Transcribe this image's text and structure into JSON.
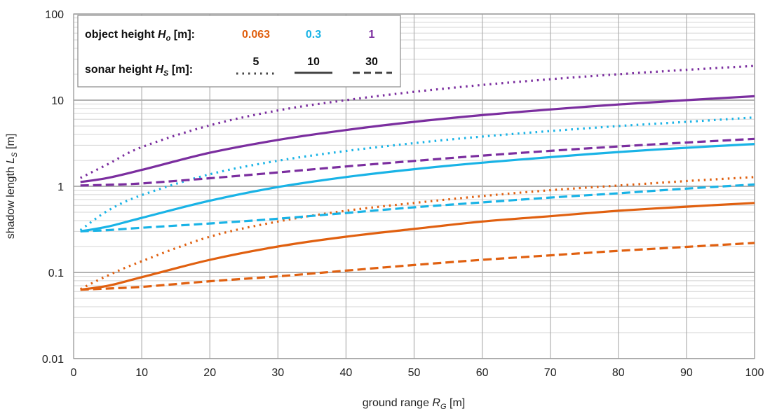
{
  "chart_data": {
    "type": "line",
    "xlabel": "ground range R_G [m]",
    "ylabel": "shadow length L_S [m]",
    "xlim": [
      0,
      100
    ],
    "ylim": [
      0.01,
      100
    ],
    "y_scale": "log",
    "grid": true,
    "x_ticks": [
      "0",
      "10",
      "20",
      "30",
      "40",
      "50",
      "60",
      "70",
      "80",
      "90",
      "100"
    ],
    "y_ticks": [
      "0.01",
      "0.1",
      "1",
      "10",
      "100"
    ],
    "legend": {
      "placement": "top-left",
      "object_label": "object height",
      "object_var": "H",
      "object_sub": "o",
      "object_unit": " [m]:",
      "object_values": [
        "0.063",
        "0.3",
        "1"
      ],
      "sonar_label": "sonar height",
      "sonar_var": "H",
      "sonar_sub": "S",
      "sonar_unit": " [m]:",
      "sonar_values": [
        "5",
        "10",
        "30"
      ]
    },
    "colors": {
      "0.063": "#e06010",
      "0.3": "#19b3e6",
      "1": "#7b2e9f"
    },
    "series": [
      {
        "object_height": 0.063,
        "sonar_height": 5,
        "style": "dotted",
        "x": [
          1,
          5,
          10,
          20,
          30,
          40,
          50,
          60,
          70,
          80,
          90,
          100
        ],
        "y": [
          0.064,
          0.092,
          0.135,
          0.26,
          0.39,
          0.52,
          0.64,
          0.77,
          0.9,
          1.02,
          1.15,
          1.28
        ]
      },
      {
        "object_height": 0.063,
        "sonar_height": 10,
        "style": "solid",
        "x": [
          1,
          5,
          10,
          20,
          30,
          40,
          50,
          60,
          70,
          80,
          90,
          100
        ],
        "y": [
          0.063,
          0.07,
          0.088,
          0.14,
          0.2,
          0.26,
          0.32,
          0.39,
          0.45,
          0.52,
          0.58,
          0.64
        ]
      },
      {
        "object_height": 0.063,
        "sonar_height": 30,
        "style": "dashed",
        "x": [
          1,
          5,
          10,
          20,
          30,
          40,
          50,
          60,
          70,
          80,
          90,
          100
        ],
        "y": [
          0.063,
          0.065,
          0.068,
          0.079,
          0.09,
          0.105,
          0.122,
          0.14,
          0.158,
          0.178,
          0.198,
          0.22
        ]
      },
      {
        "object_height": 0.3,
        "sonar_height": 5,
        "style": "dotted",
        "x": [
          1,
          5,
          10,
          20,
          30,
          40,
          50,
          60,
          70,
          80,
          90,
          100
        ],
        "y": [
          0.31,
          0.52,
          0.79,
          1.38,
          1.98,
          2.57,
          3.17,
          3.78,
          4.38,
          5.0,
          5.6,
          6.3
        ]
      },
      {
        "object_height": 0.3,
        "sonar_height": 10,
        "style": "solid",
        "x": [
          1,
          5,
          10,
          20,
          30,
          40,
          50,
          60,
          70,
          80,
          90,
          100
        ],
        "y": [
          0.3,
          0.34,
          0.43,
          0.68,
          0.98,
          1.28,
          1.58,
          1.88,
          2.18,
          2.5,
          2.8,
          3.1
        ]
      },
      {
        "object_height": 0.3,
        "sonar_height": 30,
        "style": "dashed",
        "x": [
          1,
          5,
          10,
          20,
          30,
          40,
          50,
          60,
          70,
          80,
          90,
          100
        ],
        "y": [
          0.3,
          0.31,
          0.33,
          0.37,
          0.42,
          0.49,
          0.57,
          0.65,
          0.74,
          0.83,
          0.94,
          1.05
        ]
      },
      {
        "object_height": 1,
        "sonar_height": 5,
        "style": "dotted",
        "x": [
          1,
          5,
          10,
          20,
          30,
          40,
          50,
          60,
          70,
          80,
          90,
          100
        ],
        "y": [
          1.25,
          1.8,
          2.85,
          5.1,
          7.6,
          10.0,
          12.5,
          15.0,
          17.5,
          20.0,
          22.5,
          25.0
        ]
      },
      {
        "object_height": 1,
        "sonar_height": 10,
        "style": "solid",
        "x": [
          1,
          5,
          10,
          20,
          30,
          40,
          50,
          60,
          70,
          80,
          90,
          100
        ],
        "y": [
          1.12,
          1.25,
          1.55,
          2.45,
          3.45,
          4.5,
          5.6,
          6.7,
          7.8,
          8.9,
          10.0,
          11.1
        ]
      },
      {
        "object_height": 1,
        "sonar_height": 30,
        "style": "dashed",
        "x": [
          1,
          5,
          10,
          20,
          30,
          40,
          50,
          60,
          70,
          80,
          90,
          100
        ],
        "y": [
          1.02,
          1.04,
          1.08,
          1.24,
          1.45,
          1.7,
          1.97,
          2.27,
          2.58,
          2.9,
          3.22,
          3.55
        ]
      }
    ]
  }
}
